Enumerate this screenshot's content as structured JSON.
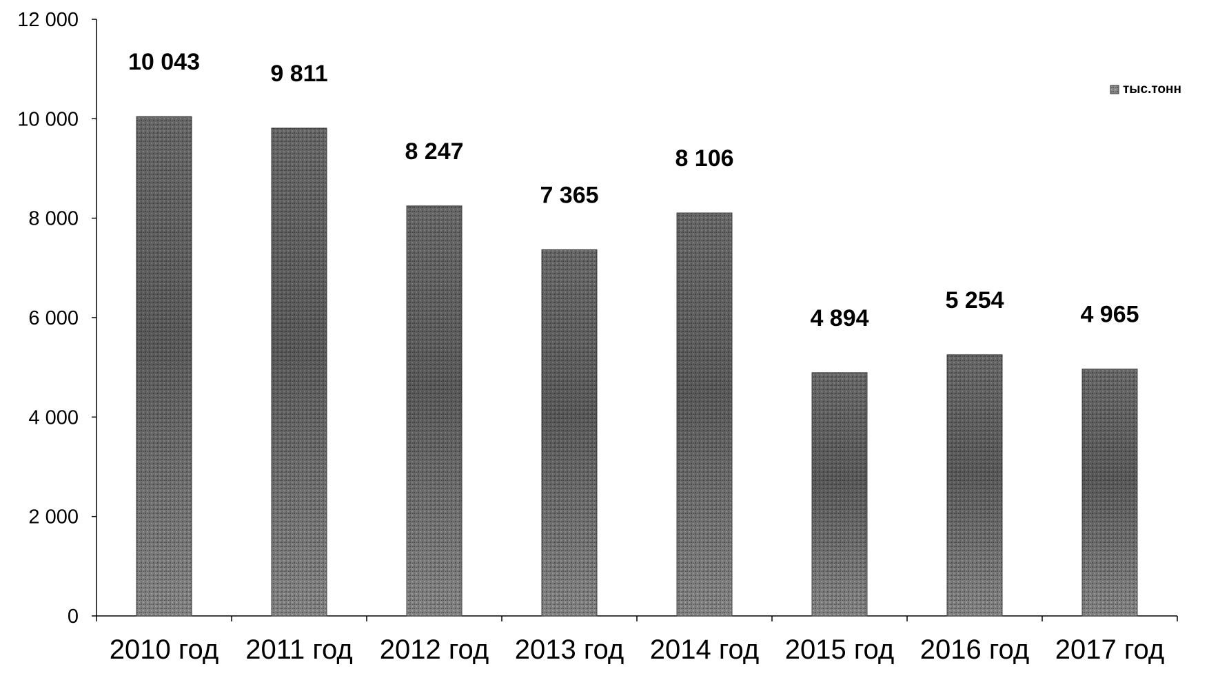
{
  "chart_data": {
    "type": "bar",
    "title": "",
    "xlabel": "",
    "ylabel": "",
    "categories": [
      "2010 год",
      "2011 год",
      "2012 год",
      "2013 год",
      "2014 год",
      "2015 год",
      "2016 год",
      "2017 год"
    ],
    "series": [
      {
        "name": "тыс.тонн",
        "values": [
          10043,
          9811,
          8247,
          7365,
          8106,
          4894,
          5254,
          4965
        ],
        "data_labels": [
          "10 043",
          "9 811",
          "8 247",
          "7 365",
          "8 106",
          "4 894",
          "5 254",
          "4 965"
        ]
      }
    ],
    "ylim": [
      0,
      12000
    ],
    "yticks": [
      0,
      2000,
      4000,
      6000,
      8000,
      10000,
      12000
    ],
    "ytick_labels": [
      "0",
      "2 000",
      "4 000",
      "6 000",
      "8 000",
      "10 000",
      "12 000"
    ],
    "grid": false,
    "legend_position": "top-right",
    "bar_color": "#7a7a7a",
    "axis_color": "#000000"
  }
}
